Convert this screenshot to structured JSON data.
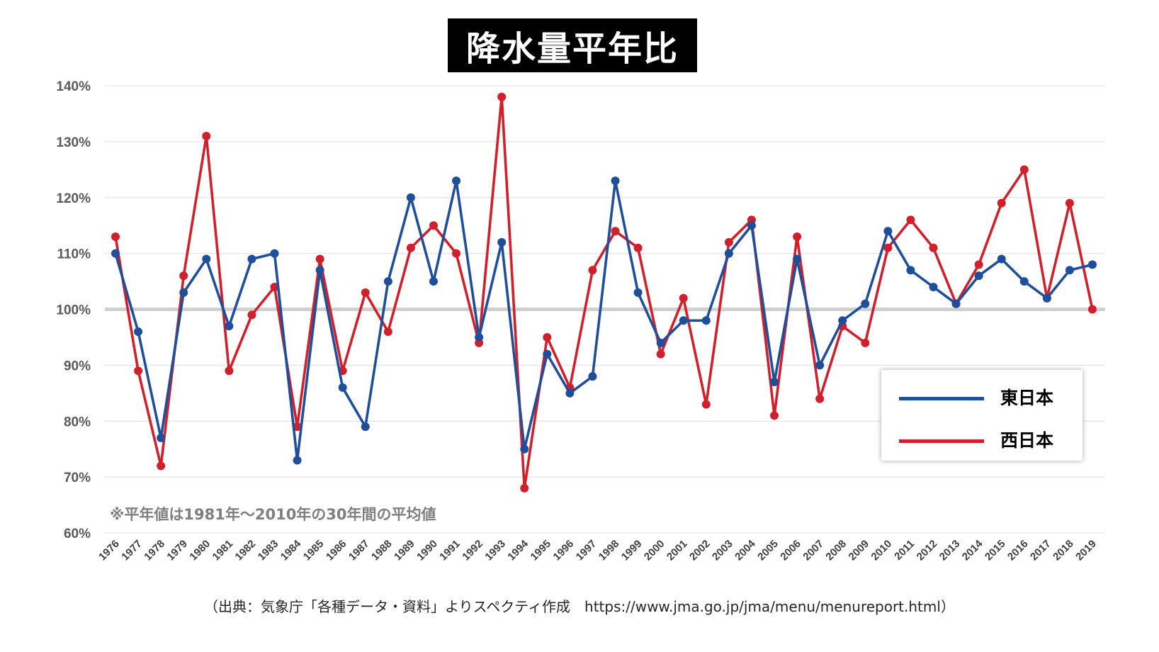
{
  "chart_data": {
    "type": "line",
    "title": "降水量平年比",
    "xlabel": "",
    "ylabel": "",
    "ylim": [
      60,
      140
    ],
    "y_ticks": [
      "60%",
      "70%",
      "80%",
      "90%",
      "100%",
      "110%",
      "120%",
      "130%",
      "140%"
    ],
    "y_tick_values": [
      60,
      70,
      80,
      90,
      100,
      110,
      120,
      130,
      140
    ],
    "reference_line": 100,
    "categories": [
      "1976",
      "1977",
      "1978",
      "1979",
      "1980",
      "1981",
      "1982",
      "1983",
      "1984",
      "1985",
      "1986",
      "1987",
      "1988",
      "1989",
      "1990",
      "1991",
      "1992",
      "1993",
      "1994",
      "1995",
      "1996",
      "1997",
      "1998",
      "1999",
      "2000",
      "2001",
      "2002",
      "2003",
      "2004",
      "2005",
      "2006",
      "2007",
      "2008",
      "2009",
      "2010",
      "2011",
      "2012",
      "2013",
      "2014",
      "2015",
      "2016",
      "2017",
      "2018",
      "2019"
    ],
    "series": [
      {
        "name": "東日本",
        "color": "#1F4E9A",
        "values": [
          110,
          96,
          77,
          103,
          109,
          97,
          109,
          110,
          73,
          107,
          86,
          79,
          105,
          120,
          105,
          123,
          95,
          112,
          75,
          92,
          85,
          88,
          123,
          103,
          94,
          98,
          98,
          110,
          115,
          87,
          109,
          90,
          98,
          101,
          114,
          107,
          104,
          101,
          106,
          109,
          105,
          102,
          107,
          108
        ]
      },
      {
        "name": "西日本",
        "color": "#D0202C",
        "values": [
          113,
          89,
          72,
          106,
          131,
          89,
          99,
          104,
          79,
          109,
          89,
          103,
          96,
          111,
          115,
          110,
          94,
          138,
          68,
          95,
          86,
          107,
          114,
          111,
          92,
          102,
          83,
          112,
          116,
          81,
          113,
          84,
          97,
          94,
          111,
          116,
          111,
          101,
          108,
          119,
          125,
          102,
          119,
          100
        ]
      }
    ],
    "legend": [
      "東日本",
      "西日本"
    ],
    "legend_position": "bottom-right",
    "note": "※平年値は1981年～2010年の30年間の平均値",
    "source": "（出典：気象庁「各種データ・資料」よりスペクティ作成　https://www.jma.go.jp/jma/menu/menureport.html）"
  }
}
